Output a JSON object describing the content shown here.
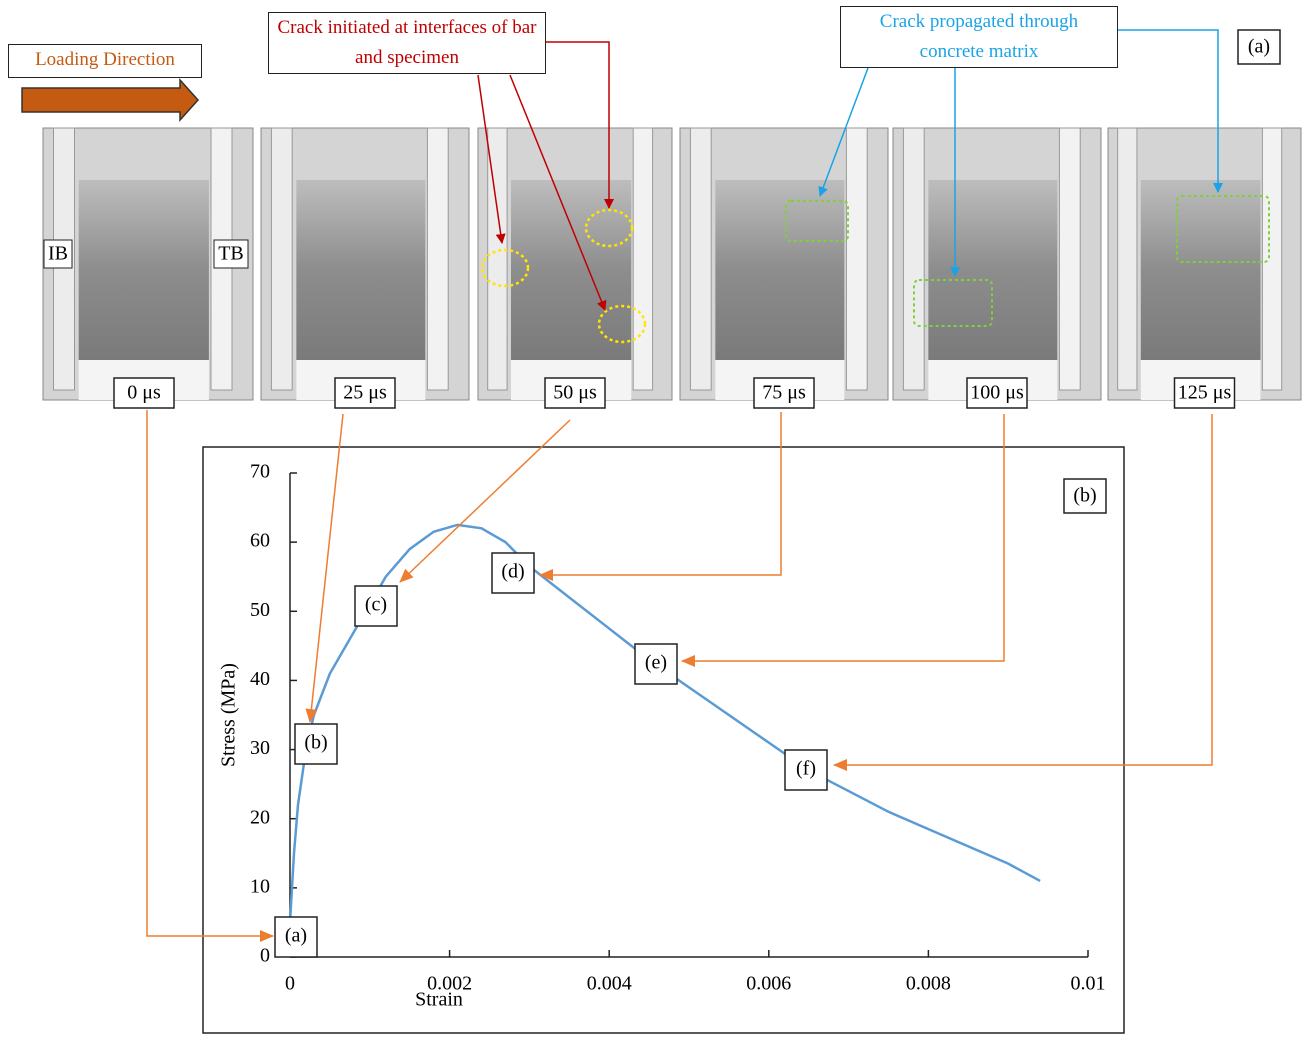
{
  "panel_a": {
    "loading_direction": "Loading Direction",
    "crack_initiated": "Crack initiated at interfaces of bar and specimen",
    "crack_propagated": "Crack propagated through concrete matrix",
    "label": "(a)",
    "incident_bar": "IB",
    "transmitted_bar": "TB",
    "times": [
      "0 μs",
      "25 μs",
      "50 μs",
      "75 μs",
      "100 μs",
      "125 μs"
    ]
  },
  "chart_data": {
    "type": "line",
    "x_label": "Strain",
    "y_label": "Stress (MPa)",
    "panel_label": "(b)",
    "x": [
      0,
      5e-05,
      0.0001,
      0.0002,
      0.0003,
      0.0005,
      0.0008,
      0.001,
      0.0012,
      0.0015,
      0.0018,
      0.0021,
      0.0024,
      0.0027,
      0.003,
      0.0035,
      0.004,
      0.0045,
      0.005,
      0.0055,
      0.006,
      0.0065,
      0.007,
      0.0075,
      0.008,
      0.0085,
      0.009,
      0.0094
    ],
    "values": [
      5,
      15,
      22,
      30,
      35,
      41,
      47,
      51,
      55,
      59,
      61.5,
      62.5,
      62,
      60,
      56.5,
      52,
      47.5,
      43,
      39,
      35,
      31,
      27,
      24,
      21,
      18.5,
      16,
      13.5,
      11
    ],
    "color": "#5b9bd5",
    "xlim": [
      0,
      0.01
    ],
    "xticks": [
      0,
      0.002,
      0.004,
      0.006,
      0.008,
      0.01
    ],
    "ylim": [
      0,
      70
    ],
    "yticks": [
      0,
      10,
      20,
      30,
      40,
      50,
      60,
      70
    ],
    "annotations": [
      "(a)",
      "(b)",
      "(c)",
      "(d)",
      "(e)",
      "(f)"
    ]
  }
}
